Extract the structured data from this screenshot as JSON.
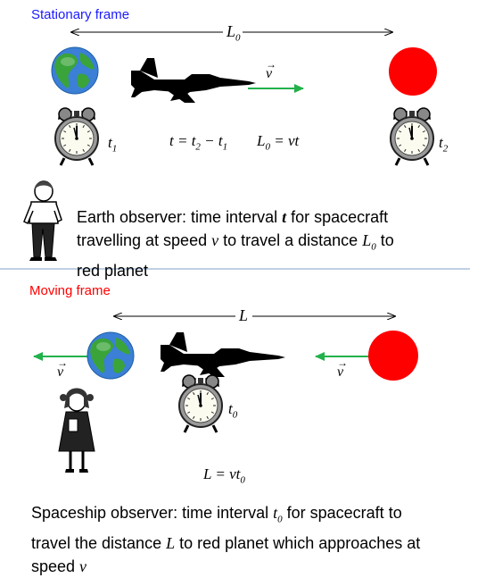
{
  "stationary": {
    "title": "Stationary frame",
    "title_color": "#1a1aff",
    "length_label": "L",
    "length_sub": "0",
    "velocity_label": "v",
    "t1_base": "t",
    "t1_sub": "1",
    "t2_base": "t",
    "t2_sub": "2",
    "eq1": "t = t",
    "eq1_sub_a": "2",
    "eq1_mid": " − t",
    "eq1_sub_b": "1",
    "eq2_a": "L",
    "eq2_sub": "0",
    "eq2_b": " = vt",
    "observer_line1": "Earth observer: time interval ",
    "observer_t": "t",
    "observer_line1_end": " for spacecraft",
    "observer_line2_a": "travelling at speed ",
    "observer_v": "v",
    "observer_line2_b": " to travel a distance ",
    "observer_L": "L",
    "observer_L_sub": "0",
    "observer_line2_c": " to",
    "observer_line3": "red planet"
  },
  "moving": {
    "title": "Moving frame",
    "title_color": "#ff0000",
    "length_label": "L",
    "velocity_left": "v",
    "velocity_right": "v",
    "t0_base": "t",
    "t0_sub": "0",
    "eq_a": "L = vt",
    "eq_sub": "0",
    "observer_line1_a": "Spaceship observer: time interval ",
    "observer_t": "t",
    "observer_t_sub": "0",
    "observer_line1_b": " for spacecraft to",
    "observer_line2_a": "travel the distance ",
    "observer_L": "L",
    "observer_line2_b": " to red planet which approaches at",
    "observer_line3_a": "speed ",
    "observer_v": "v"
  },
  "colors": {
    "arrow_green": "#22b14c",
    "planet_red": "#ff0000",
    "ocean_blue": "#3b7fd6",
    "land_green": "#3aa43a",
    "divider": "#7fa2c8"
  },
  "icons": [
    "earth-icon",
    "red-planet-icon",
    "jet-icon",
    "alarm-clock-icon",
    "boy-observer-icon",
    "girl-observer-icon"
  ]
}
